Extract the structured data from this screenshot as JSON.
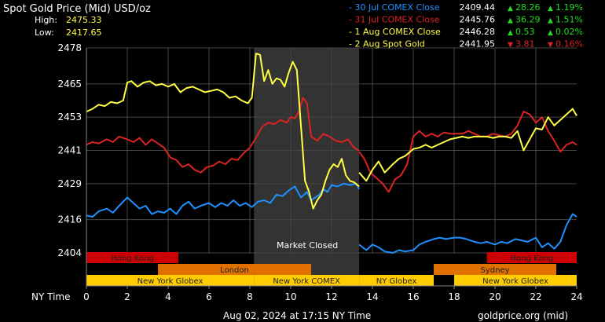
{
  "chart_data": {
    "type": "line",
    "title": "Spot Gold Price (Mid) USD/oz",
    "high_label": "High:",
    "high_value": "2475.33",
    "low_label": "Low:",
    "low_value": "2417.65",
    "xlabel": "NY Time",
    "x_ticks": [
      "0",
      "2",
      "4",
      "6",
      "8",
      "10",
      "12",
      "14",
      "16",
      "18",
      "20",
      "22",
      "24"
    ],
    "x_range": [
      0,
      24
    ],
    "y_ticks": [
      "2478",
      "2465",
      "2453",
      "2441",
      "2429",
      "2416",
      "2404"
    ],
    "y_range": [
      2404,
      2478
    ],
    "grid": true,
    "market_closed_label": "Market Closed",
    "market_closed_range": [
      8.2,
      13.35
    ],
    "footer_left": "Aug 02, 2024 at 17:15 NY Time",
    "footer_right": "goldprice.org (mid)",
    "legend": [
      {
        "name": "- 30 Jul COMEX Close",
        "value": "2409.44",
        "change": "28.26",
        "pct": "1.19%",
        "direction": "up",
        "color": "#1e90ff"
      },
      {
        "name": "- 31 Jul COMEX Close",
        "value": "2445.76",
        "change": "36.29",
        "pct": "1.51%",
        "direction": "up",
        "color": "#dd2222"
      },
      {
        "name": "- 1 Aug COMEX Close",
        "value": "2446.28",
        "change": "0.53",
        "pct": "0.02%",
        "direction": "up",
        "color": "#ffff44"
      },
      {
        "name": "- 2 Aug Spot Gold",
        "value": "2441.95",
        "change": "3.81",
        "pct": "0.16%",
        "direction": "down",
        "color": "#ffff44"
      }
    ],
    "sessions": [
      {
        "label": "Hong Kong",
        "start": 0,
        "end": 4.5,
        "row": 0,
        "color": "#cc0000"
      },
      {
        "label": "Hong Kong",
        "start": 19.6,
        "end": 24,
        "row": 0,
        "color": "#cc0000"
      },
      {
        "label": "London",
        "start": 3.5,
        "end": 11,
        "row": 1,
        "color": "#e07000"
      },
      {
        "label": "Sydney",
        "start": 17,
        "end": 23,
        "row": 1,
        "color": "#e07000"
      },
      {
        "label": "New York Globex",
        "start": 0,
        "end": 8.2,
        "row": 2,
        "color": "#ffcc00"
      },
      {
        "label": "New York COMEX",
        "start": 8.2,
        "end": 13.35,
        "row": 2,
        "color": "#ffcc00"
      },
      {
        "label": "NY Globex",
        "start": 13.35,
        "end": 17,
        "row": 2,
        "color": "#ffcc00"
      },
      {
        "label": "New York Globex",
        "start": 18,
        "end": 24,
        "row": 2,
        "color": "#ffcc00"
      }
    ],
    "series": [
      {
        "name": "30 Jul COMEX Close",
        "color": "#1e90ff",
        "x": [
          0,
          0.3,
          0.6,
          1,
          1.3,
          1.6,
          2,
          2.3,
          2.6,
          2.9,
          3.2,
          3.5,
          3.8,
          4.1,
          4.4,
          4.7,
          5,
          5.3,
          5.6,
          6,
          6.3,
          6.6,
          6.9,
          7.2,
          7.5,
          7.8,
          8.1,
          8.4,
          8.7,
          9,
          9.3,
          9.6,
          9.9,
          10.2,
          10.5,
          10.8,
          11,
          11.2,
          11.4,
          11.6,
          11.8,
          12,
          12.3,
          12.6,
          12.9,
          13.2,
          13.35
        ],
        "y": [
          2417.5,
          2417,
          2419,
          2420,
          2418.5,
          2421,
          2424,
          2422,
          2420,
          2421,
          2418,
          2419,
          2418.5,
          2420,
          2418,
          2421,
          2422.5,
          2420,
          2421,
          2422,
          2420.5,
          2422,
          2421,
          2423,
          2421,
          2422,
          2420.5,
          2422.5,
          2423,
          2422,
          2425,
          2424.5,
          2426.5,
          2428,
          2424,
          2426,
          2423,
          2424,
          2425,
          2427,
          2426,
          2428.5,
          2428,
          2429,
          2428.5,
          2429,
          2427
        ]
      },
      {
        "name": "30 Jul COMEX Close",
        "color": "#1e90ff",
        "x": [
          13.35,
          13.7,
          14,
          14.3,
          14.6,
          15,
          15.3,
          15.6,
          16,
          16.3,
          16.6,
          17,
          17.3,
          17.6,
          18,
          18.3,
          18.6,
          19,
          19.3,
          19.6,
          20,
          20.3,
          20.6,
          21,
          21.3,
          21.6,
          22,
          22.3,
          22.6,
          22.9,
          23.2,
          23.5,
          23.8,
          24
        ],
        "y": [
          2407,
          2405,
          2407,
          2406,
          2404.5,
          2404,
          2405,
          2404.5,
          2405,
          2407,
          2408,
          2409,
          2409.5,
          2409,
          2409.5,
          2409.5,
          2409,
          2408,
          2407.5,
          2408,
          2407,
          2408,
          2407.5,
          2409,
          2408.5,
          2408,
          2409.5,
          2406,
          2407.5,
          2405.5,
          2408,
          2414,
          2418,
          2417
        ]
      },
      {
        "name": "31 Jul COMEX Close",
        "color": "#dd2222",
        "x": [
          0,
          0.3,
          0.6,
          1,
          1.3,
          1.6,
          2,
          2.3,
          2.6,
          2.9,
          3.2,
          3.5,
          3.8,
          4.1,
          4.4,
          4.7,
          5,
          5.3,
          5.6,
          5.9,
          6.2,
          6.5,
          6.8,
          7.1,
          7.4,
          7.7,
          8,
          8.3,
          8.6,
          8.9,
          9.2,
          9.5,
          9.8,
          10,
          10.2,
          10.4,
          10.6,
          10.8,
          11,
          11.3,
          11.6,
          11.9,
          12.2,
          12.5,
          12.8,
          13.1,
          13.35
        ],
        "y": [
          2443,
          2444,
          2443.5,
          2445,
          2444,
          2446,
          2445,
          2444,
          2445.5,
          2443,
          2445,
          2443.5,
          2442,
          2438.5,
          2437.5,
          2435,
          2436,
          2434,
          2433,
          2435,
          2435.5,
          2437,
          2436,
          2438,
          2437.5,
          2440,
          2442,
          2445.5,
          2449.5,
          2451,
          2450.5,
          2452,
          2451,
          2453,
          2452.5,
          2455,
          2460,
          2458,
          2446,
          2444.5,
          2447,
          2446,
          2444.5,
          2444,
          2445,
          2442,
          2441
        ]
      },
      {
        "name": "31 Jul COMEX Close",
        "color": "#dd2222",
        "x": [
          13.35,
          13.6,
          13.9,
          14.2,
          14.5,
          14.8,
          15.1,
          15.4,
          15.7,
          16,
          16.3,
          16.6,
          16.9,
          17.2,
          17.5,
          17.8,
          18.1,
          18.4,
          18.7,
          19,
          19.3,
          19.6,
          19.9,
          20.2,
          20.5,
          20.8,
          21.1,
          21.4,
          21.7,
          22,
          22.3,
          22.6,
          22.9,
          23.2,
          23.5,
          23.8,
          24
        ],
        "y": [
          2440.5,
          2438,
          2433,
          2431,
          2429,
          2426,
          2430.5,
          2432,
          2436,
          2446,
          2448,
          2446,
          2447,
          2446,
          2447.5,
          2447,
          2447,
          2447,
          2448,
          2447,
          2446,
          2446,
          2447,
          2446.5,
          2446,
          2447,
          2450,
          2455,
          2454,
          2451,
          2453,
          2448,
          2444.5,
          2440.5,
          2443,
          2444,
          2443
        ]
      },
      {
        "name": "1 Aug COMEX Close",
        "color": "#ffff44",
        "x": [
          0,
          0.3,
          0.6,
          0.9,
          1.2,
          1.5,
          1.8,
          2,
          2.2,
          2.5,
          2.8,
          3.1,
          3.4,
          3.7,
          4,
          4.3,
          4.6,
          4.9,
          5.2,
          5.5,
          5.8,
          6.1,
          6.4,
          6.7,
          7,
          7.3,
          7.6,
          7.9,
          8.1,
          8.3,
          8.5,
          8.7,
          8.9,
          9.1,
          9.3,
          9.5,
          9.7,
          9.9,
          10.1,
          10.3,
          10.5,
          10.7,
          10.9,
          11.1,
          11.3,
          11.5,
          11.7,
          11.9,
          12.1,
          12.3,
          12.5,
          12.7,
          12.9,
          13.1,
          13.35
        ],
        "y": [
          2455,
          2456,
          2457.5,
          2457,
          2458.5,
          2458,
          2459,
          2465.5,
          2466,
          2464,
          2465.5,
          2466,
          2464.5,
          2465,
          2464,
          2465,
          2462,
          2463.5,
          2464,
          2463,
          2462,
          2462.5,
          2463,
          2462,
          2460,
          2460.5,
          2459,
          2458,
          2460,
          2476,
          2475.5,
          2466,
          2470,
          2465,
          2467,
          2466.5,
          2464,
          2469,
          2473,
          2470,
          2450,
          2430,
          2426,
          2420,
          2423,
          2425,
          2430,
          2434,
          2436,
          2435,
          2438,
          2432,
          2430,
          2429.5,
          2428
        ]
      },
      {
        "name": "2 Aug Spot Gold",
        "color": "#ffff44",
        "x": [
          13.35,
          13.7,
          14,
          14.3,
          14.6,
          15,
          15.3,
          15.6,
          16,
          16.3,
          16.6,
          16.9,
          17.2,
          17.5,
          17.8,
          18.1,
          18.4,
          18.7,
          19,
          19.3,
          19.6,
          19.9,
          20.2,
          20.5,
          20.8,
          21.1,
          21.4,
          21.7,
          22,
          22.3,
          22.6,
          22.9,
          23.2,
          23.5,
          23.8,
          24
        ],
        "y": [
          2433,
          2430,
          2434,
          2437,
          2433,
          2436,
          2438,
          2439,
          2441.5,
          2442,
          2443,
          2442,
          2443,
          2444,
          2445,
          2445.5,
          2446,
          2445.5,
          2446,
          2446,
          2446,
          2445.5,
          2446,
          2446,
          2445.5,
          2448,
          2441,
          2445,
          2449,
          2448.5,
          2453,
          2450,
          2452,
          2454,
          2456,
          2453.5
        ]
      }
    ]
  }
}
